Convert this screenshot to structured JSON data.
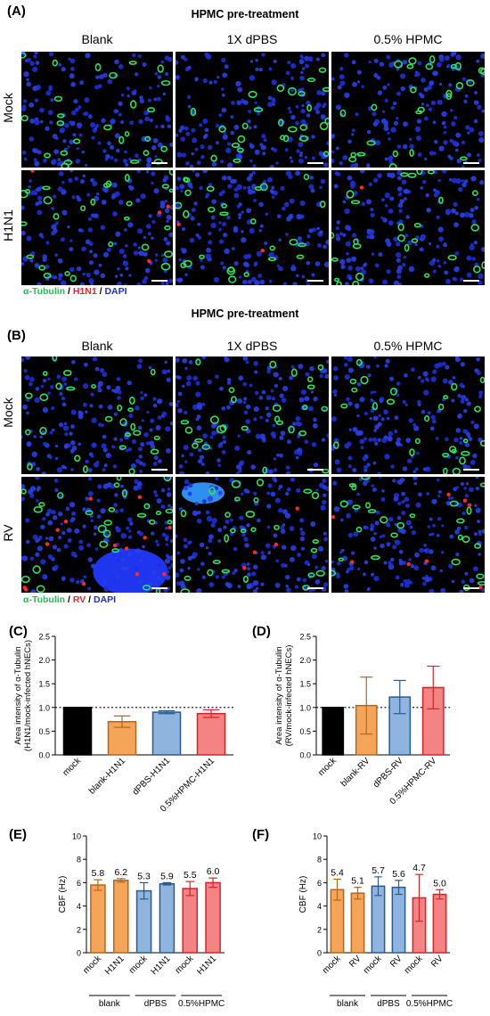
{
  "panel_A": {
    "label": "(A)",
    "title": "HPMC pre-treatment",
    "columns": [
      "Blank",
      "1X dPBS",
      "0.5% HPMC"
    ],
    "rows": [
      "Mock",
      "H1N1"
    ],
    "legend": {
      "green": "α-Tubulin",
      "sep1": " / ",
      "red": "H1N1",
      "sep2": " / ",
      "blue": "DAPI"
    }
  },
  "panel_B": {
    "label": "(B)",
    "title": "HPMC pre-treatment",
    "columns": [
      "Blank",
      "1X dPBS",
      "0.5% HPMC"
    ],
    "rows": [
      "Mock",
      "RV"
    ],
    "legend": {
      "green": "α-Tubulin",
      "sep1": " / ",
      "red": "RV",
      "sep2": " / ",
      "blue": "DAPI"
    }
  },
  "colors": {
    "black": "#000000",
    "orange": "#f5a55a",
    "blue": "#8fb4de",
    "red": "#f48383",
    "orange_edge": "#b4661a",
    "blue_edge": "#2a5a94",
    "red_edge": "#d8222a"
  },
  "chart_data": [
    {
      "id": "C",
      "label": "(C)",
      "type": "bar",
      "ylabel_line1": "Area intensity of α-Tubulin",
      "ylabel_line2": "(H1N1/mock-infected hNECs)",
      "categories": [
        "mock",
        "blank-H1N1",
        "dPBS-H1N1",
        "0.5%HPMC-H1N1"
      ],
      "values": [
        1.0,
        0.7,
        0.9,
        0.87
      ],
      "errors": [
        0.0,
        0.12,
        0.03,
        0.08
      ],
      "bar_colors": [
        "black",
        "orange",
        "blue",
        "red"
      ],
      "ylim": [
        0,
        2.5
      ],
      "yticks": [
        "0.0",
        "0.5",
        "1.0",
        "1.5",
        "2.0",
        "2.5"
      ],
      "reference_line": 1.0
    },
    {
      "id": "D",
      "label": "(D)",
      "type": "bar",
      "ylabel_line1": "Area intensity of α-Tubulin",
      "ylabel_line2": "(RV/mock-infected hNECs)",
      "categories": [
        "mock",
        "blank-RV",
        "dPBS-RV",
        "0.5%HPMC-RV"
      ],
      "values": [
        1.0,
        1.04,
        1.22,
        1.42
      ],
      "errors": [
        0.0,
        0.6,
        0.35,
        0.45
      ],
      "bar_colors": [
        "black",
        "orange",
        "blue",
        "red"
      ],
      "ylim": [
        0,
        2.5
      ],
      "yticks": [
        "0.0",
        "0.5",
        "1.0",
        "1.5",
        "2.0",
        "2.5"
      ],
      "reference_line": 1.0
    },
    {
      "id": "E",
      "label": "(E)",
      "type": "bar",
      "ylabel": "CBF (Hz)",
      "categories": [
        "mock",
        "H1N1",
        "mock",
        "H1N1",
        "mock",
        "H1N1"
      ],
      "values": [
        5.8,
        6.2,
        5.3,
        5.9,
        5.5,
        6.0
      ],
      "value_labels": [
        "5.8",
        "6.2",
        "5.3",
        "5.9",
        "5.5",
        "6.0"
      ],
      "errors": [
        0.45,
        0.15,
        0.7,
        0.1,
        0.6,
        0.4
      ],
      "bar_colors": [
        "orange",
        "orange",
        "blue",
        "blue",
        "red",
        "red"
      ],
      "groups": [
        "blank",
        "dPBS",
        "0.5%HPMC"
      ],
      "ylim": [
        0,
        10
      ],
      "yticks": [
        "0",
        "2",
        "4",
        "6",
        "8",
        "10"
      ]
    },
    {
      "id": "F",
      "label": "(F)",
      "type": "bar",
      "ylabel": "CBF (Hz)",
      "categories": [
        "mock",
        "RV",
        "mock",
        "RV",
        "mock",
        "RV"
      ],
      "values": [
        5.4,
        5.1,
        5.7,
        5.6,
        4.7,
        5.0
      ],
      "value_labels": [
        "5.4",
        "5.1",
        "5.7",
        "5.6",
        "4.7",
        "5.0"
      ],
      "errors": [
        0.9,
        0.5,
        0.8,
        0.6,
        2.0,
        0.4
      ],
      "bar_colors": [
        "orange",
        "orange",
        "blue",
        "blue",
        "red",
        "red"
      ],
      "groups": [
        "blank",
        "dPBS",
        "0.5%HPMC"
      ],
      "ylim": [
        0,
        10
      ],
      "yticks": [
        "0",
        "2",
        "4",
        "6",
        "8",
        "10"
      ]
    }
  ]
}
